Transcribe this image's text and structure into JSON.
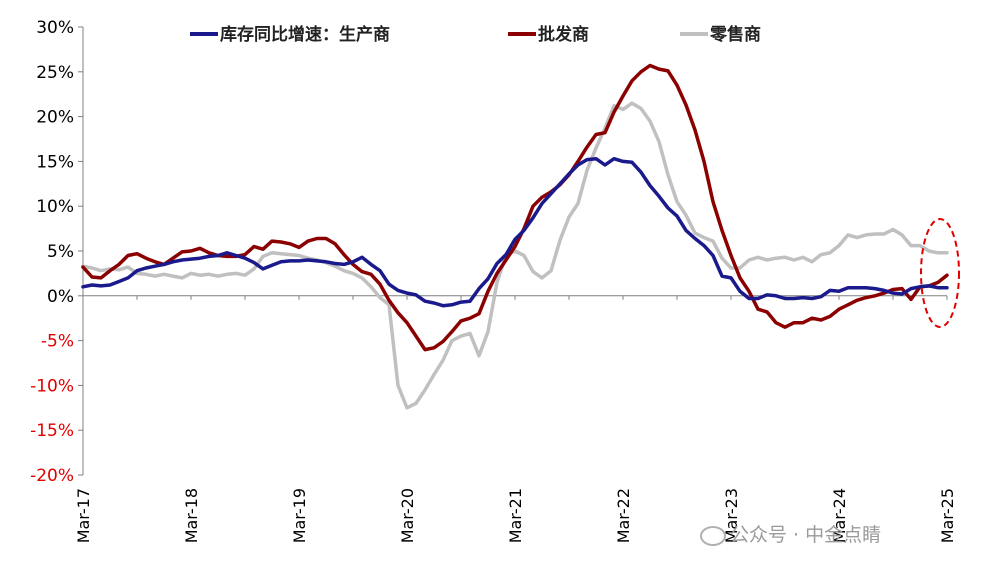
{
  "chart_data": {
    "type": "line",
    "title": "",
    "xlabel": "",
    "ylabel": "",
    "ylim": [
      -20,
      30
    ],
    "y_ticks": [
      -20,
      -15,
      -10,
      -5,
      0,
      5,
      10,
      15,
      20,
      25,
      30
    ],
    "y_tick_labels": [
      "-20%",
      "-15%",
      "-10%",
      "-5%",
      "0%",
      "5%",
      "10%",
      "15%",
      "20%",
      "25%",
      "30%"
    ],
    "x_start": "2017-03",
    "x_tick_labels": [
      "Mar-17",
      "Mar-18",
      "Mar-19",
      "Mar-20",
      "Mar-21",
      "Mar-22",
      "Mar-23",
      "Mar-24",
      "Mar-25"
    ],
    "grid": false,
    "legend_position": "top",
    "series": [
      {
        "name": "库存同比增速：生产商",
        "color": "#1a1a8c",
        "values": [
          1.0,
          1.2,
          1.1,
          1.2,
          1.6,
          2.0,
          2.8,
          3.1,
          3.3,
          3.5,
          3.8,
          4.0,
          4.1,
          4.2,
          4.4,
          4.5,
          4.8,
          4.5,
          4.2,
          3.7,
          3.0,
          3.4,
          3.8,
          3.9,
          3.9,
          4.0,
          3.9,
          3.8,
          3.6,
          3.5,
          3.8,
          4.3,
          3.5,
          2.8,
          1.3,
          0.6,
          0.3,
          0.1,
          -0.6,
          -0.8,
          -1.1,
          -1.0,
          -0.7,
          -0.6,
          0.8,
          1.9,
          3.6,
          4.6,
          6.3,
          7.3,
          8.7,
          10.3,
          11.4,
          12.5,
          13.6,
          14.6,
          15.2,
          15.3,
          14.6,
          15.3,
          15.0,
          14.9,
          13.8,
          12.3,
          11.1,
          9.8,
          8.9,
          7.3,
          6.4,
          5.6,
          4.5,
          2.2,
          2.0,
          0.5,
          -0.3,
          -0.3,
          0.1,
          0.0,
          -0.3,
          -0.3,
          -0.2,
          -0.3,
          -0.1,
          0.6,
          0.5,
          0.9,
          0.9,
          0.9,
          0.8,
          0.6,
          0.3,
          0.2,
          0.8,
          1.0,
          1.1,
          0.9,
          0.9
        ]
      },
      {
        "name": "批发商",
        "color": "#8b0000",
        "values": [
          3.2,
          2.1,
          2.0,
          2.8,
          3.5,
          4.5,
          4.7,
          4.2,
          3.8,
          3.5,
          4.2,
          4.9,
          5.0,
          5.3,
          4.8,
          4.5,
          4.4,
          4.4,
          4.6,
          5.5,
          5.2,
          6.1,
          6.0,
          5.8,
          5.4,
          6.1,
          6.4,
          6.4,
          5.8,
          4.6,
          3.5,
          2.7,
          2.4,
          1.3,
          -0.5,
          -1.9,
          -3.0,
          -4.5,
          -6.0,
          -5.8,
          -5.1,
          -4.0,
          -2.8,
          -2.5,
          -2.0,
          0.5,
          2.5,
          4.0,
          5.5,
          7.5,
          10.0,
          11.0,
          11.6,
          12.4,
          13.5,
          15.0,
          16.6,
          18.0,
          18.2,
          20.5,
          22.3,
          24.0,
          25.0,
          25.7,
          25.3,
          25.1,
          23.5,
          21.3,
          18.5,
          15.0,
          10.5,
          7.3,
          4.5,
          2.0,
          0.5,
          -1.5,
          -1.8,
          -3.0,
          -3.5,
          -3.0,
          -3.0,
          -2.5,
          -2.7,
          -2.3,
          -1.5,
          -1.0,
          -0.5,
          -0.2,
          0.0,
          0.3,
          0.7,
          0.8,
          -0.4,
          1.0,
          1.1,
          1.5,
          2.3
        ]
      },
      {
        "name": "零售商",
        "color": "#c0c0c0",
        "values": [
          3.3,
          3.1,
          2.8,
          3.0,
          2.9,
          3.2,
          2.5,
          2.4,
          2.2,
          2.4,
          2.2,
          2.0,
          2.5,
          2.3,
          2.4,
          2.2,
          2.4,
          2.5,
          2.3,
          3.0,
          4.4,
          4.8,
          4.7,
          4.6,
          4.5,
          4.2,
          4.0,
          3.7,
          3.3,
          2.8,
          2.5,
          2.0,
          1.0,
          -0.2,
          -1.0,
          -10.0,
          -12.5,
          -12.0,
          -10.5,
          -8.8,
          -7.2,
          -5.0,
          -4.5,
          -4.2,
          -6.7,
          -4.0,
          1.5,
          4.5,
          5.0,
          4.5,
          2.7,
          2.0,
          2.8,
          6.2,
          8.8,
          10.3,
          14.0,
          16.5,
          18.7,
          21.2,
          20.8,
          21.5,
          20.9,
          19.5,
          17.2,
          13.5,
          10.5,
          9.0,
          7.0,
          6.5,
          6.1,
          4.2,
          3.1,
          3.1,
          4.0,
          4.3,
          4.0,
          4.2,
          4.3,
          4.0,
          4.3,
          3.8,
          4.6,
          4.8,
          5.6,
          6.8,
          6.5,
          6.8,
          6.9,
          6.9,
          7.4,
          6.8,
          5.6,
          5.6,
          5.0,
          4.8,
          4.8
        ]
      }
    ]
  },
  "watermark": "公众号 · 中金点睛"
}
